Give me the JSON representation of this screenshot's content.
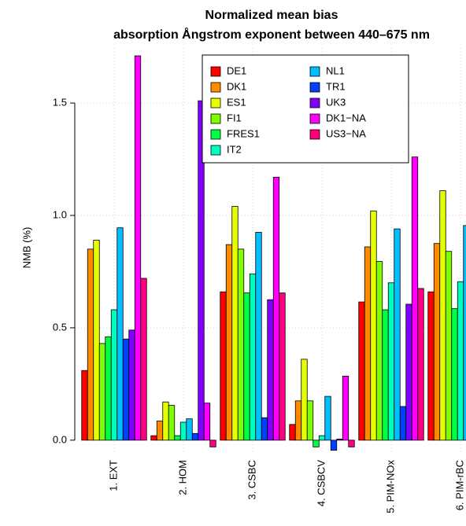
{
  "chart_data": {
    "type": "bar",
    "title": "Normalized mean bias",
    "subtitle": "absorption Ångstrom exponent between 440–675 nm",
    "ylabel": "NMB (%)",
    "categories": [
      "1. EXT",
      "2. HOM",
      "3. CSBC",
      "4. CSBCV",
      "5. PIM-NOx",
      "6. PIM-rBC"
    ],
    "ylim": [
      -0.06,
      1.71
    ],
    "yticks": [
      {
        "value": 0,
        "label": "0.0"
      },
      0.5,
      {
        "value": 1,
        "label": "1.0"
      },
      1.5
    ],
    "grid": true,
    "series": [
      {
        "name": "DE1",
        "color": "#ff0000",
        "values": [
          0.31,
          0.02,
          0.66,
          0.07,
          0.615,
          0.66
        ]
      },
      {
        "name": "DK1",
        "color": "#ff8c00",
        "values": [
          0.85,
          0.085,
          0.87,
          0.175,
          0.86,
          0.875
        ]
      },
      {
        "name": "ES1",
        "color": "#e6ff00",
        "values": [
          0.89,
          0.17,
          1.04,
          0.36,
          1.02,
          1.11
        ]
      },
      {
        "name": "FI1",
        "color": "#80ff00",
        "values": [
          0.43,
          0.155,
          0.85,
          0.175,
          0.795,
          0.84
        ]
      },
      {
        "name": "FRES1",
        "color": "#00ff40",
        "values": [
          0.46,
          0.02,
          0.655,
          -0.03,
          0.58,
          0.585
        ]
      },
      {
        "name": "IT2",
        "color": "#00ffbf",
        "values": [
          0.58,
          0.08,
          0.74,
          0.02,
          0.7,
          0.705
        ]
      },
      {
        "name": "NL1",
        "color": "#00bfff",
        "values": [
          0.945,
          0.095,
          0.925,
          0.195,
          0.94,
          0.955
        ]
      },
      {
        "name": "TR1",
        "color": "#0040ff",
        "values": [
          0.45,
          0.03,
          0.1,
          -0.045,
          0.15,
          null
        ]
      },
      {
        "name": "UK3",
        "color": "#8000ff",
        "values": [
          0.49,
          1.51,
          0.625,
          0.005,
          0.605,
          null
        ]
      },
      {
        "name": "DK1−NA",
        "color": "#ff00ff",
        "values": [
          1.71,
          0.165,
          1.17,
          0.285,
          1.26,
          null
        ]
      },
      {
        "name": "US3−NA",
        "color": "#ff0080",
        "values": [
          0.72,
          -0.03,
          0.655,
          -0.03,
          0.675,
          null
        ]
      }
    ]
  }
}
